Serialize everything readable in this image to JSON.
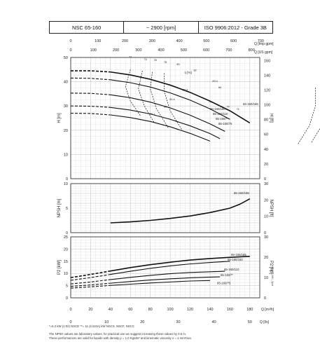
{
  "header": {
    "model": "NSC 65-160",
    "speed": "~ 2900 [rpm]",
    "standard": "ISO 9906:2012 - Grade 3B"
  },
  "footnotes": {
    "note1": "*=5.2 kW (1:02) NSCE   **= 11 (1/110A) kW NSCS, NSCF, NSCC",
    "note2": "The NPSH values are laboratory values; for practical use we suggest increasing these values by 0.5 m.",
    "note3": "These performances are valid for liquids with density ρ = 1.0 Kg/dm³ and kinematic viscosity ν = 1 mm²/sec."
  },
  "side_code": "H_65_160_2pol",
  "chart_data": [
    {
      "type": "line",
      "name": "head",
      "xlabel_bottom": "Q [m³/h]",
      "xlabel_top_imp": "Q [Imp gpm]",
      "xlabel_top_us": "Q [US gpm]",
      "ylabel": "H [m]",
      "ylabel_right": "H [ft]",
      "xlim": [
        0,
        190
      ],
      "ylim": [
        0,
        50
      ],
      "yticks": [
        0,
        10,
        20,
        30,
        40,
        50
      ],
      "yticks_right": [
        "0",
        "20",
        "40",
        "60",
        "80",
        "100",
        "120",
        "140",
        "160"
      ],
      "top_imp_ticks": [
        "0",
        "100",
        "200",
        "300",
        "400",
        "500",
        "600",
        "700"
      ],
      "top_us_ticks": [
        "0",
        "100",
        "200",
        "300",
        "400",
        "500",
        "600",
        "700",
        "800"
      ],
      "eff_label": "η [%]",
      "series": [
        {
          "name": "65-160/185",
          "x": [
            0,
            20,
            40,
            60,
            80,
            100,
            120,
            140,
            160,
            180
          ],
          "y": [
            44.5,
            44.5,
            44,
            42.8,
            41,
            38.6,
            35.6,
            32,
            28,
            23
          ]
        },
        {
          "name": "65-160/150",
          "x": [
            0,
            20,
            40,
            60,
            80,
            100,
            120,
            140,
            160
          ],
          "y": [
            41.5,
            41.4,
            40.8,
            39.6,
            37.8,
            35.4,
            32.4,
            28.8,
            24.5
          ]
        },
        {
          "name": "65-160/110",
          "x": [
            0,
            20,
            40,
            60,
            80,
            100,
            120,
            140,
            155
          ],
          "y": [
            35.3,
            35.2,
            34.6,
            33.4,
            31.6,
            29.2,
            26.2,
            22.6,
            19.5
          ]
        },
        {
          "name": "65-160/**",
          "x": [
            0,
            20,
            40,
            60,
            80,
            100,
            120,
            140,
            150
          ],
          "y": [
            30,
            29.9,
            29.4,
            28.3,
            26.7,
            24.5,
            21.8,
            18.6,
            16.5
          ]
        },
        {
          "name": "65-160/75",
          "x": [
            0,
            20,
            40,
            60,
            80,
            100,
            120,
            140
          ],
          "y": [
            27,
            26.9,
            26.3,
            25.2,
            23.6,
            21.4,
            18.7,
            15.5
          ]
        }
      ],
      "efficiency_labels": [
        "71",
        "74",
        "76",
        "78",
        "80",
        "82",
        "83.4",
        "84",
        "82.4",
        "81.4",
        "80",
        "79.1",
        "76",
        "74",
        "71"
      ]
    },
    {
      "type": "line",
      "name": "npsh",
      "ylabel": "NPSH [m]",
      "ylabel_right": "NPSH [ft]",
      "xlim": [
        0,
        190
      ],
      "ylim": [
        0,
        10
      ],
      "yticks": [
        0,
        5,
        10
      ],
      "yticks_right": [
        "0",
        "10",
        "20",
        "30"
      ],
      "series": [
        {
          "name": "65-160/185",
          "x": [
            40,
            60,
            80,
            100,
            120,
            140,
            160,
            170,
            180
          ],
          "y": [
            2.0,
            2.2,
            2.5,
            2.9,
            3.4,
            4.1,
            5.0,
            5.8,
            6.9
          ]
        }
      ]
    },
    {
      "type": "line",
      "name": "power",
      "ylabel": "P2 [kW]",
      "ylabel_right": "P2 [hp]",
      "xlabel": "Q [m³/h]",
      "xlabel_ls": "Q [l/s]",
      "xlim": [
        0,
        190
      ],
      "ylim": [
        0,
        25
      ],
      "yticks": [
        0,
        5,
        10,
        15,
        20,
        25
      ],
      "yticks_right": [
        "0",
        "10",
        "20",
        "30"
      ],
      "xticks": [
        0,
        20,
        40,
        60,
        80,
        100,
        120,
        140,
        160,
        180
      ],
      "ls_ticks": [
        "0",
        "10",
        "20",
        "30",
        "40",
        "50"
      ],
      "series": [
        {
          "name": "65-160/185",
          "x": [
            0,
            20,
            40,
            60,
            80,
            100,
            120,
            140,
            160,
            180
          ],
          "y": [
            8.3,
            9.6,
            11.0,
            12.4,
            13.6,
            14.6,
            15.5,
            16.1,
            16.6,
            17.0
          ]
        },
        {
          "name": "65-160/150",
          "x": [
            0,
            20,
            40,
            60,
            80,
            100,
            120,
            140,
            160
          ],
          "y": [
            7.2,
            8.3,
            9.6,
            10.9,
            12.1,
            13.1,
            13.9,
            14.5,
            15.0
          ]
        },
        {
          "name": "65-160/110",
          "x": [
            0,
            20,
            40,
            60,
            80,
            100,
            120,
            140,
            155
          ],
          "y": [
            5.7,
            6.5,
            7.5,
            8.4,
            9.2,
            9.9,
            10.4,
            10.7,
            10.9
          ]
        },
        {
          "name": "65-160/**",
          "x": [
            0,
            20,
            40,
            60,
            80,
            100,
            120,
            140,
            150
          ],
          "y": [
            4.7,
            5.3,
            6.0,
            6.7,
            7.3,
            7.8,
            8.2,
            8.5,
            8.6
          ]
        },
        {
          "name": "65-160/75",
          "x": [
            0,
            20,
            40,
            60,
            80,
            100,
            120,
            140
          ],
          "y": [
            4.0,
            4.5,
            5.1,
            5.6,
            6.1,
            6.5,
            6.9,
            7.1
          ]
        }
      ]
    }
  ]
}
